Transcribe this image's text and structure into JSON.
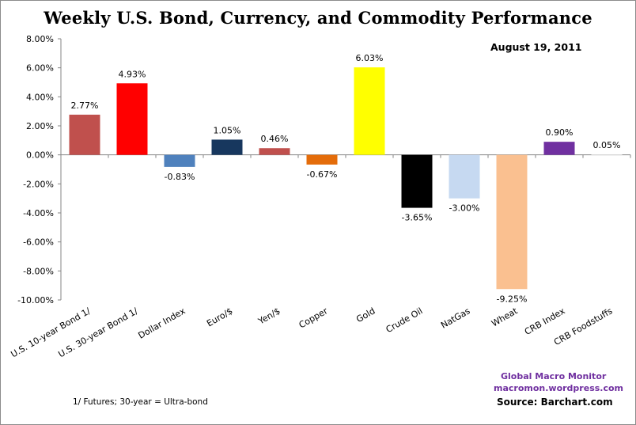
{
  "chart_data": {
    "type": "bar",
    "title": "Weekly U.S. Bond, Currency, and Commodity Performance",
    "subtitle": "August 19, 2011",
    "xlabel": "",
    "ylabel": "",
    "ylim": [
      -10,
      8
    ],
    "ytick_step": 2,
    "yticks": [
      "8.00%",
      "6.00%",
      "4.00%",
      "2.00%",
      "0.00%",
      "-2.00%",
      "-4.00%",
      "-6.00%",
      "-8.00%",
      "-10.00%"
    ],
    "grid": false,
    "legend": "none",
    "categories": [
      "U.S. 10-year Bond 1/",
      "U.S. 30-year Bond 1/",
      "Dollar Index",
      "Euro/$",
      "Yen/$",
      "Copper",
      "Gold",
      "Crude Oil",
      "NatGas",
      "Wheat",
      "CRB Index",
      "CRB Foodstuffs"
    ],
    "values": [
      2.77,
      4.93,
      -0.83,
      1.05,
      0.46,
      -0.67,
      6.03,
      -3.65,
      -3.0,
      -9.25,
      0.9,
      0.05
    ],
    "data_labels": [
      "2.77%",
      "4.93%",
      "-0.83%",
      "1.05%",
      "0.46%",
      "-0.67%",
      "6.03%",
      "-3.65%",
      "-3.00%",
      "-9.25%",
      "0.90%",
      "0.05%"
    ],
    "colors": [
      "#c0504d",
      "#ff0000",
      "#4f81bd",
      "#17375e",
      "#c0504d",
      "#e46c0a",
      "#ffff00",
      "#000000",
      "#c6d9f1",
      "#fac090",
      "#7030a0",
      "#ffffff"
    ],
    "annotations": [
      "1/ Futures; 30-year = Ultra-bond",
      "Global Macro Monitor",
      "macromon.wordpress.com",
      "Source: Barchart.com"
    ]
  },
  "header": {
    "title": "Weekly U.S. Bond, Currency, and Commodity Performance",
    "date": "August 19, 2011"
  },
  "footer": {
    "footnote": "1/ Futures; 30-year = Ultra-bond",
    "credit_name": "Global Macro Monitor",
    "credit_url": "macromon.wordpress.com",
    "source": "Source: Barchart.com"
  },
  "colors": {
    "credit": "#7030a0",
    "axis": "#868686"
  }
}
